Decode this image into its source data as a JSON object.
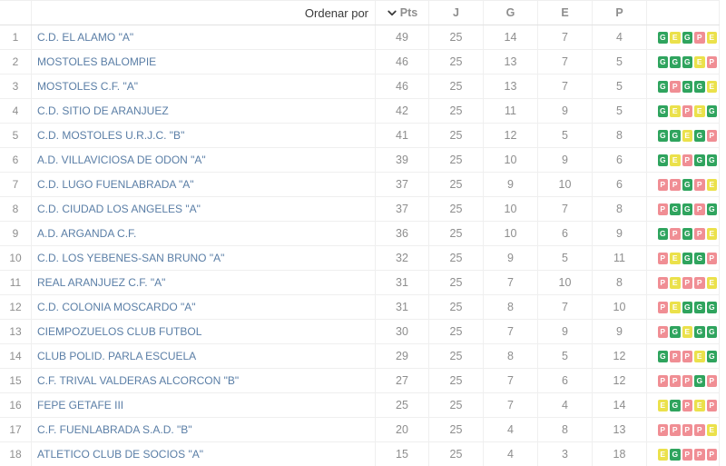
{
  "table": {
    "sort_label": "Ordenar por",
    "sort_icon": "chevron-down",
    "columns": {
      "pts": "Pts",
      "played": "J",
      "wins": "G",
      "draws": "E",
      "losses": "P"
    },
    "rows": [
      {
        "pos": "1",
        "name": "C.D. EL ALAMO \"A\"",
        "pts": "49",
        "j": "25",
        "g": "14",
        "e": "7",
        "p": "4",
        "form": [
          "G",
          "E",
          "G",
          "P",
          "E"
        ]
      },
      {
        "pos": "2",
        "name": "MOSTOLES BALOMPIE",
        "pts": "46",
        "j": "25",
        "g": "13",
        "e": "7",
        "p": "5",
        "form": [
          "G",
          "G",
          "G",
          "E",
          "P"
        ]
      },
      {
        "pos": "3",
        "name": "MOSTOLES C.F. \"A\"",
        "pts": "46",
        "j": "25",
        "g": "13",
        "e": "7",
        "p": "5",
        "form": [
          "G",
          "P",
          "G",
          "G",
          "E"
        ]
      },
      {
        "pos": "4",
        "name": "C.D. SITIO DE ARANJUEZ",
        "pts": "42",
        "j": "25",
        "g": "11",
        "e": "9",
        "p": "5",
        "form": [
          "G",
          "E",
          "P",
          "E",
          "G"
        ]
      },
      {
        "pos": "5",
        "name": "C.D. MOSTOLES U.R.J.C. \"B\"",
        "pts": "41",
        "j": "25",
        "g": "12",
        "e": "5",
        "p": "8",
        "form": [
          "G",
          "G",
          "E",
          "G",
          "P"
        ]
      },
      {
        "pos": "6",
        "name": "A.D. VILLAVICIOSA DE ODON \"A\"",
        "pts": "39",
        "j": "25",
        "g": "10",
        "e": "9",
        "p": "6",
        "form": [
          "G",
          "E",
          "P",
          "G",
          "G"
        ]
      },
      {
        "pos": "7",
        "name": "C.D. LUGO FUENLABRADA \"A\"",
        "pts": "37",
        "j": "25",
        "g": "9",
        "e": "10",
        "p": "6",
        "form": [
          "P",
          "P",
          "G",
          "P",
          "E"
        ]
      },
      {
        "pos": "8",
        "name": "C.D. CIUDAD LOS ANGELES \"A\"",
        "pts": "37",
        "j": "25",
        "g": "10",
        "e": "7",
        "p": "8",
        "form": [
          "P",
          "G",
          "G",
          "P",
          "G"
        ]
      },
      {
        "pos": "9",
        "name": "A.D. ARGANDA C.F.",
        "pts": "36",
        "j": "25",
        "g": "10",
        "e": "6",
        "p": "9",
        "form": [
          "G",
          "P",
          "G",
          "P",
          "E"
        ]
      },
      {
        "pos": "10",
        "name": "C.D. LOS YEBENES-SAN BRUNO \"A\"",
        "pts": "32",
        "j": "25",
        "g": "9",
        "e": "5",
        "p": "11",
        "form": [
          "P",
          "E",
          "G",
          "G",
          "P"
        ]
      },
      {
        "pos": "11",
        "name": "REAL ARANJUEZ C.F. \"A\"",
        "pts": "31",
        "j": "25",
        "g": "7",
        "e": "10",
        "p": "8",
        "form": [
          "P",
          "E",
          "P",
          "P",
          "E"
        ]
      },
      {
        "pos": "12",
        "name": "C.D. COLONIA MOSCARDO \"A\"",
        "pts": "31",
        "j": "25",
        "g": "8",
        "e": "7",
        "p": "10",
        "form": [
          "P",
          "E",
          "G",
          "G",
          "G"
        ]
      },
      {
        "pos": "13",
        "name": "CIEMPOZUELOS CLUB FUTBOL",
        "pts": "30",
        "j": "25",
        "g": "7",
        "e": "9",
        "p": "9",
        "form": [
          "P",
          "G",
          "E",
          "G",
          "G"
        ]
      },
      {
        "pos": "14",
        "name": "CLUB POLID. PARLA ESCUELA",
        "pts": "29",
        "j": "25",
        "g": "8",
        "e": "5",
        "p": "12",
        "form": [
          "G",
          "P",
          "P",
          "E",
          "G"
        ]
      },
      {
        "pos": "15",
        "name": "C.F. TRIVAL VALDERAS ALCORCON \"B\"",
        "pts": "27",
        "j": "25",
        "g": "7",
        "e": "6",
        "p": "12",
        "form": [
          "P",
          "P",
          "P",
          "G",
          "P"
        ]
      },
      {
        "pos": "16",
        "name": "FEPE GETAFE III",
        "pts": "25",
        "j": "25",
        "g": "7",
        "e": "4",
        "p": "14",
        "form": [
          "E",
          "G",
          "P",
          "E",
          "P"
        ]
      },
      {
        "pos": "17",
        "name": "C.F. FUENLABRADA S.A.D. \"B\"",
        "pts": "20",
        "j": "25",
        "g": "4",
        "e": "8",
        "p": "13",
        "form": [
          "P",
          "P",
          "P",
          "P",
          "E"
        ]
      },
      {
        "pos": "18",
        "name": "ATLETICO CLUB DE SOCIOS \"A\"",
        "pts": "15",
        "j": "25",
        "g": "4",
        "e": "3",
        "p": "18",
        "form": [
          "E",
          "G",
          "P",
          "P",
          "P"
        ]
      }
    ]
  },
  "colors": {
    "win_badge": "#2fa45e",
    "draw_badge": "#ebe14b",
    "loss_badge": "#f08e94",
    "team_link": "#5a7ea6"
  }
}
